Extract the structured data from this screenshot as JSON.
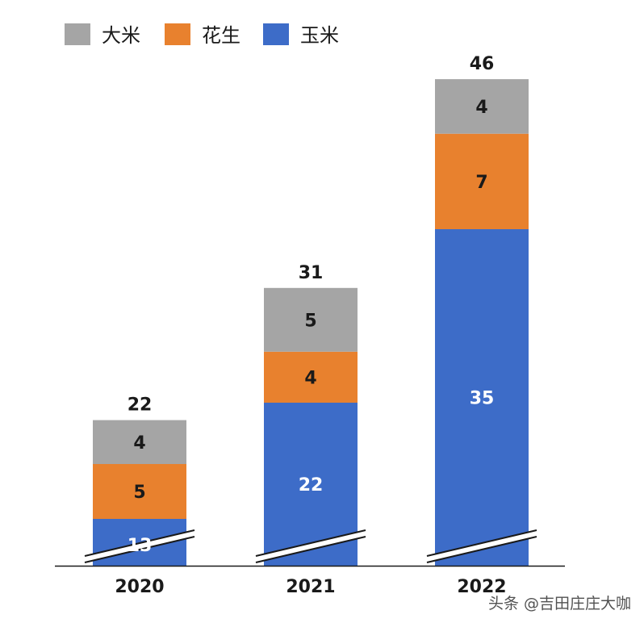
{
  "chart_data": {
    "type": "bar",
    "stacked": true,
    "categories": [
      "2020",
      "2021",
      "2022"
    ],
    "series": [
      {
        "name": "玉米",
        "values": [
          13,
          22,
          35
        ],
        "color": "#3d6cc8",
        "label_color": "#ffffff"
      },
      {
        "name": "花生",
        "values": [
          5,
          4,
          7
        ],
        "color": "#e8812e",
        "label_color": "#1a1a1a"
      },
      {
        "name": "大米",
        "values": [
          4,
          5,
          4
        ],
        "color": "#a5a5a5",
        "label_color": "#1a1a1a"
      }
    ],
    "totals": [
      "22",
      "31",
      "46"
    ],
    "legend_order": [
      "大米",
      "花生",
      "玉米"
    ],
    "legend_position": "top-left",
    "broken_axis": true,
    "grid": false,
    "title": "",
    "xlabel": "",
    "ylabel": ""
  },
  "watermark": "头条 @吉田庄庄大咖"
}
